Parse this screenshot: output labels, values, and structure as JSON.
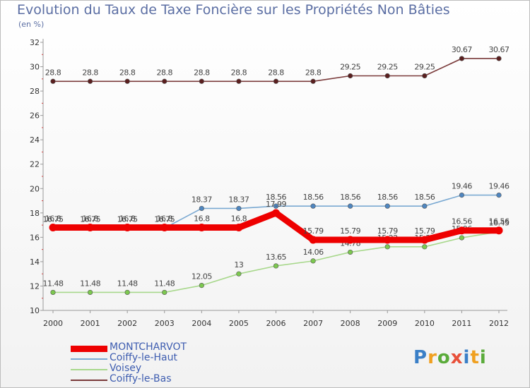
{
  "chart_data": {
    "type": "line",
    "title": "Evolution du Taux de Taxe Foncière sur les Propriétés Non Bâties",
    "subtitle": "(en %)",
    "x": [
      "2000",
      "2001",
      "2002",
      "2003",
      "2004",
      "2005",
      "2006",
      "2007",
      "2008",
      "2009",
      "2010",
      "2011",
      "2012"
    ],
    "ylim": [
      10,
      32
    ],
    "yticks": [
      "10",
      "12",
      "14",
      "16",
      "18",
      "20",
      "22",
      "24",
      "26",
      "28",
      "30",
      "32"
    ],
    "series": [
      {
        "name": "Coiffy-le-Bas",
        "color": "#7a3a3a",
        "marker": "#5a1f1f",
        "values": [
          28.8,
          28.8,
          28.8,
          28.8,
          28.8,
          28.8,
          28.8,
          28.8,
          29.25,
          29.25,
          29.25,
          30.67,
          30.67
        ],
        "labels": [
          "28.8",
          "28.8",
          "28.8",
          "28.8",
          "28.8",
          "28.8",
          "28.8",
          "28.8",
          "29.25",
          "29.25",
          "29.25",
          "30.67",
          "30.67"
        ]
      },
      {
        "name": "Coiffy-le-Haut",
        "color": "#7aa9d2",
        "marker": "#4f86c0",
        "values": [
          16.75,
          16.75,
          16.75,
          16.75,
          18.37,
          18.37,
          18.56,
          18.56,
          18.56,
          18.56,
          18.56,
          19.46,
          19.46
        ],
        "labels": [
          "16.75",
          "16.75",
          "16.75",
          "16.75",
          "18.37",
          "18.37",
          "18.56",
          "18.56",
          "18.56",
          "18.56",
          "18.56",
          "19.46",
          "19.46"
        ]
      },
      {
        "name": "Voisey",
        "color": "#a8d88c",
        "marker": "#7cc84f",
        "values": [
          11.48,
          11.48,
          11.48,
          11.48,
          12.05,
          13,
          13.65,
          14.06,
          14.78,
          15.22,
          15.22,
          15.96,
          16.45
        ],
        "labels": [
          "11.48",
          "11.48",
          "11.48",
          "11.48",
          "12.05",
          "13",
          "13.65",
          "14.06",
          "14.78",
          "15.22",
          "15.22",
          "15.96",
          "16.45"
        ]
      },
      {
        "name": "MONTCHARVOT",
        "color": "#ee0000",
        "marker": "#ee0000",
        "values": [
          16.8,
          16.8,
          16.8,
          16.8,
          16.8,
          16.8,
          17.99,
          15.79,
          15.79,
          15.79,
          15.79,
          16.56,
          16.56
        ],
        "labels": [
          "16.8",
          "16.8",
          "16.8",
          "16.8",
          "16.8",
          "16.8",
          "17.99",
          "15.79",
          "15.79",
          "15.79",
          "15.79",
          "16.56",
          "16.56"
        ]
      }
    ],
    "legend": [
      "MONTCHARVOT",
      "Coiffy-le-Haut",
      "Voisey",
      "Coiffy-le-Bas"
    ],
    "grid": false
  },
  "logo": {
    "letters": [
      "P",
      "r",
      "o",
      "x",
      "i",
      "t",
      "i"
    ],
    "colors": [
      "#3a7fc7",
      "#f0a020",
      "#5aab3a",
      "#e8503a",
      "#3a7fc7",
      "#f0a020",
      "#5aab3a"
    ]
  }
}
